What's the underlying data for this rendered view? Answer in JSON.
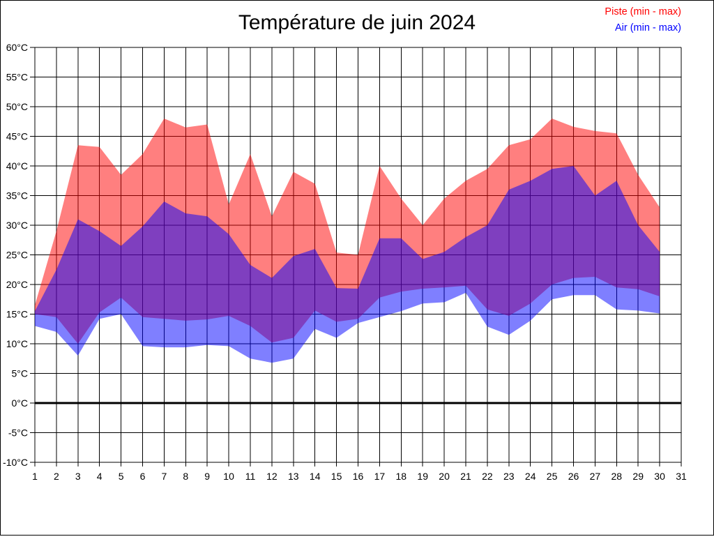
{
  "title": "Température de juin 2024",
  "legend": {
    "piste": "Piste (min - max)",
    "air": "Air (min - max)"
  },
  "colors": {
    "piste": "#ff0000",
    "air": "#0000ff",
    "piste_fill": "rgba(255,0,0,0.5)",
    "air_fill": "rgba(0,0,255,0.5)",
    "grid": "#000000",
    "background": "#ffffff"
  },
  "chart_data": {
    "type": "area",
    "title": "Température de juin 2024",
    "xlabel": "",
    "ylabel": "",
    "ylim": [
      -10,
      60
    ],
    "xlim": [
      1,
      31
    ],
    "grid": true,
    "zero_line_bold": true,
    "legend_position": "top-right",
    "y_tick_values": [
      60,
      55,
      50,
      45,
      40,
      35,
      30,
      25,
      20,
      15,
      10,
      5,
      0,
      -5,
      -10
    ],
    "y_tick_labels": [
      "60°C",
      "55°C",
      "50°C",
      "45°C",
      "40°C",
      "35°C",
      "30°C",
      "25°C",
      "20°C",
      "15°C",
      "10°C",
      "5°C",
      "0°C",
      "-5°C",
      "-10°C"
    ],
    "x_tick_labels": [
      "1",
      "2",
      "3",
      "4",
      "5",
      "6",
      "7",
      "8",
      "9",
      "10",
      "11",
      "12",
      "13",
      "14",
      "15",
      "16",
      "17",
      "18",
      "19",
      "20",
      "21",
      "22",
      "23",
      "24",
      "25",
      "26",
      "27",
      "28",
      "29",
      "30",
      "31"
    ],
    "days": [
      1,
      2,
      3,
      4,
      5,
      6,
      7,
      8,
      9,
      10,
      11,
      12,
      13,
      14,
      15,
      16,
      17,
      18,
      19,
      20,
      21,
      22,
      23,
      24,
      25,
      26,
      27,
      28,
      29,
      30
    ],
    "series": [
      {
        "name": "Piste (min - max)",
        "color": "#ff0000",
        "max": [
          16.5,
          29,
          43.5,
          43.2,
          38.5,
          42,
          48,
          46.5,
          47,
          33.5,
          42,
          31.5,
          39,
          37,
          25.4,
          25,
          40,
          34.5,
          30,
          34.5,
          37.5,
          39.5,
          43.5,
          44.5,
          48,
          46.6,
          45.9,
          45.5,
          38.5,
          33
        ],
        "min": [
          15,
          14.5,
          10,
          15.3,
          17.8,
          14.5,
          14.2,
          13.9,
          14.1,
          14.7,
          13,
          10.2,
          11,
          15.6,
          13.7,
          14.2,
          17.8,
          18.8,
          19.3,
          19.5,
          19.8,
          15.8,
          14.7,
          16.8,
          20,
          21.1,
          21.3,
          19.5,
          19.2,
          18
        ]
      },
      {
        "name": "Air (min - max)",
        "color": "#0000ff",
        "max": [
          15.5,
          22.5,
          31,
          29,
          26.5,
          29.8,
          34,
          32,
          31.5,
          28.5,
          23.3,
          21.1,
          24.8,
          26,
          19.4,
          19.3,
          27.8,
          27.8,
          24.3,
          25.5,
          28,
          30,
          36,
          37.5,
          39.5,
          40,
          35,
          37.5,
          30,
          25.5
        ],
        "min": [
          13,
          12,
          8,
          14.2,
          15,
          9.6,
          9.4,
          9.4,
          9.8,
          9.6,
          7.5,
          6.8,
          7.5,
          12.5,
          11,
          13.5,
          14.5,
          15.5,
          16.8,
          17,
          18.6,
          12.9,
          11.5,
          13.9,
          17.5,
          18.2,
          18.2,
          15.8,
          15.6,
          15.1
        ]
      }
    ]
  }
}
